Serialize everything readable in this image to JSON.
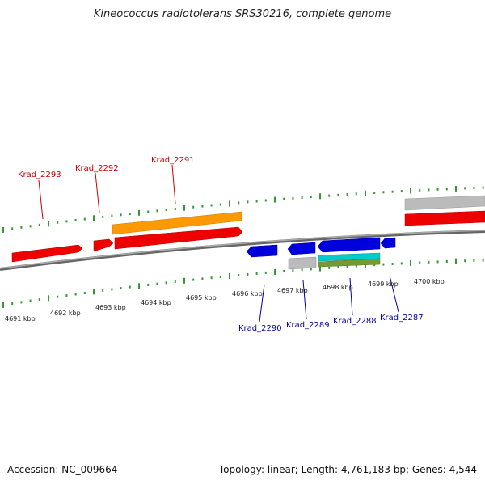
{
  "title": "Kineococcus radiotolerans SRS30216, complete genome",
  "footer": {
    "accession": "Accession: NC_009664",
    "summary": "Topology: linear; Length: 4,761,183 bp; Genes: 4,544"
  },
  "colors": {
    "forward_gene": "#ee0000",
    "forward_label": "#cc0000",
    "reverse_gene": "#0000dd",
    "reverse_label": "#0000aa",
    "cds_orange": "#ff9900",
    "cds_grey": "#bbbbbb",
    "cds_cyan": "#00cccc",
    "cds_olive": "#779933",
    "tick": "#339933",
    "backbone": "#888888"
  },
  "axis": {
    "unit": "kbp",
    "ticks": [
      {
        "value": 4691,
        "label": "4691 kbp"
      },
      {
        "value": 4692,
        "label": "4692 kbp"
      },
      {
        "value": 4693,
        "label": "4693 kbp"
      },
      {
        "value": 4694,
        "label": "4694 kbp"
      },
      {
        "value": 4695,
        "label": "4695 kbp"
      },
      {
        "value": 4696,
        "label": "4696 kbp"
      },
      {
        "value": 4697,
        "label": "4697 kbp"
      },
      {
        "value": 4698,
        "label": "4698 kbp"
      },
      {
        "value": 4699,
        "label": "4699 kbp"
      },
      {
        "value": 4700,
        "label": "4700 kbp"
      }
    ]
  },
  "forward_genes": [
    {
      "label": "Krad_2293"
    },
    {
      "label": "Krad_2292"
    },
    {
      "label": "Krad_2291"
    }
  ],
  "reverse_genes": [
    {
      "label": "Krad_2290"
    },
    {
      "label": "Krad_2289"
    },
    {
      "label": "Krad_2288"
    },
    {
      "label": "Krad_2287"
    }
  ]
}
